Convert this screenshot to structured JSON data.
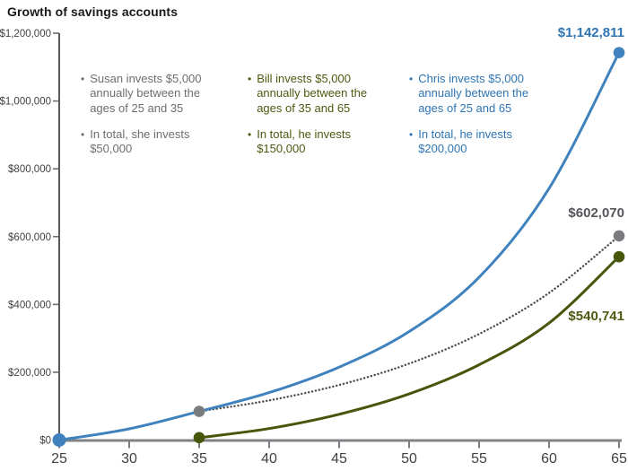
{
  "title": "Growth of savings accounts",
  "annotations": {
    "susan": {
      "person": "Susan",
      "color": "#6d6e71",
      "bullet_char": "•",
      "bullets": [
        "Susan invests $5,000\nannually between the\nages of 25 and 35",
        "In total, she invests\n$50,000"
      ]
    },
    "bill": {
      "person": "Bill",
      "color": "#4b5b10",
      "bullet_char": "•",
      "bullets": [
        "Bill invests $5,000\nannually between the\nages of 35 and 65",
        "In total, he invests\n$150,000"
      ]
    },
    "chris": {
      "person": "Chris",
      "color": "#2e75b6",
      "bullet_char": "•",
      "bullets": [
        "Chris invests $5,000\nannually between the\nages of 25 and 65",
        "In total, he invests\n$200,000"
      ]
    }
  },
  "end_labels": {
    "chris": {
      "text": "$1,142,811",
      "color": "#2e75b6"
    },
    "susan": {
      "text": "$602,070",
      "color": "#55565a"
    },
    "bill": {
      "text": "$540,741",
      "color": "#4b5b10"
    }
  },
  "colors": {
    "y_axis": "#58595b",
    "x_axis": "#808285",
    "tick_mark": "#6d6e71",
    "tick_text": "#414144"
  },
  "chart_data": {
    "type": "line",
    "title": "Growth of savings accounts",
    "xlabel": "",
    "ylabel": "",
    "grid": false,
    "legend_position": "none",
    "xlim": [
      25,
      65
    ],
    "ylim": [
      0,
      1200000
    ],
    "x_ticks": [
      25,
      30,
      35,
      40,
      45,
      50,
      55,
      60,
      65
    ],
    "y_ticks": [
      {
        "value": 0,
        "label": "$0"
      },
      {
        "value": 200000,
        "label": "$200,000"
      },
      {
        "value": 400000,
        "label": "$400,000"
      },
      {
        "value": 600000,
        "label": "$600,000"
      },
      {
        "value": 800000,
        "label": "$800,000"
      },
      {
        "value": 1000000,
        "label": "$1,000,000"
      },
      {
        "value": 1200000,
        "label": "$1,200,000"
      }
    ],
    "series": [
      {
        "id": "susan",
        "name": "Susan",
        "line_style": "dotted",
        "color": "#4c4d4f",
        "dot_color": "#7a7b7e",
        "final_value": 602070,
        "final_label": "$602,070",
        "total_invested": 50000,
        "dot_ages": [
          35,
          65
        ],
        "points": [
          [
            35,
            84500
          ],
          [
            40,
            117000
          ],
          [
            45,
            162500
          ],
          [
            50,
            225400
          ],
          [
            55,
            312700
          ],
          [
            60,
            433900
          ],
          [
            65,
            602070
          ]
        ]
      },
      {
        "id": "bill",
        "name": "Bill",
        "line_style": "solid",
        "color": "#46560b",
        "dot_color": "#46560b",
        "final_value": 540741,
        "final_label": "$540,741",
        "total_invested": 150000,
        "dot_ages": [
          35,
          65
        ],
        "points": [
          [
            35,
            7000
          ],
          [
            40,
            34000
          ],
          [
            45,
            76000
          ],
          [
            50,
            136000
          ],
          [
            55,
            222000
          ],
          [
            60,
            345000
          ],
          [
            65,
            540741
          ]
        ]
      },
      {
        "id": "chris",
        "name": "Chris",
        "line_style": "solid",
        "color": "#3f82bd",
        "dot_color": "#3f82bd",
        "final_value": 1142811,
        "final_label": "$1,142,811",
        "total_invested": 200000,
        "dot_ages": [
          25,
          65
        ],
        "points": [
          [
            25,
            0
          ],
          [
            30,
            33000
          ],
          [
            35,
            84500
          ],
          [
            40,
            140000
          ],
          [
            45,
            215000
          ],
          [
            50,
            320000
          ],
          [
            55,
            480000
          ],
          [
            60,
            742000
          ],
          [
            65,
            1142811
          ]
        ]
      }
    ]
  }
}
